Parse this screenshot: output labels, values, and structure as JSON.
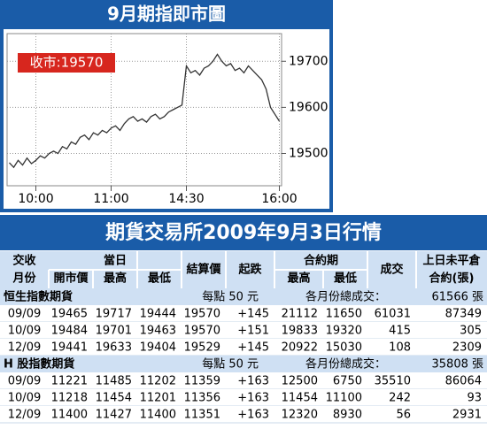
{
  "chart_data": {
    "type": "line",
    "title": "9月期指即市圖",
    "annotation": "收市:19570",
    "categories": [
      null,
      null,
      null,
      null,
      null,
      null,
      "10:00",
      null,
      null,
      null,
      null,
      null,
      null,
      null,
      null,
      null,
      null,
      null,
      null,
      null,
      null,
      null,
      null,
      "11:00",
      null,
      null,
      null,
      null,
      null,
      null,
      null,
      null,
      null,
      null,
      null,
      null,
      null,
      null,
      null,
      null,
      "14:30",
      null,
      null,
      null,
      null,
      null,
      null,
      null,
      null,
      null,
      null,
      null,
      null,
      null,
      null,
      null,
      null,
      null,
      null,
      null,
      null,
      "16:00"
    ],
    "values": [
      19480,
      19470,
      19485,
      19475,
      19490,
      19478,
      19485,
      19495,
      19490,
      19500,
      19505,
      19500,
      19515,
      19510,
      19525,
      19520,
      19535,
      19540,
      19530,
      19545,
      19540,
      19550,
      19545,
      19555,
      19560,
      19550,
      19565,
      19575,
      19580,
      19570,
      19575,
      19568,
      19580,
      19585,
      19575,
      19580,
      19590,
      19595,
      19600,
      19605,
      19690,
      19675,
      19680,
      19670,
      19685,
      19690,
      19700,
      19715,
      19700,
      19690,
      19695,
      19680,
      19685,
      19675,
      19690,
      19680,
      19670,
      19660,
      19640,
      19600,
      19585,
      19570
    ],
    "color": "#333333",
    "ylim": [
      19430,
      19760
    ],
    "yticks": [
      19500,
      19600,
      19700
    ],
    "grid": true
  },
  "table": {
    "title": "期貨交易所2009年9月3日行情",
    "header": {
      "month": [
        "交收",
        "月份"
      ],
      "day": "當日",
      "open": "開市價",
      "high": "最高",
      "low": "最低",
      "settle": "結算價",
      "change": "起跌",
      "contract": "合約期",
      "c_high": "最高",
      "c_low": "最低",
      "volume": "成交",
      "oi": [
        "上日未平倉",
        "合約(張)"
      ]
    },
    "sections": [
      {
        "name": "恒生指數期貨",
        "unit": "每點 50 元",
        "total_label": "各月份總成交：",
        "total": "61566 張",
        "rows": [
          [
            "09/09",
            "19465",
            "19717",
            "19444",
            "19570",
            "+145",
            "21112",
            "11650",
            "61031",
            "87349"
          ],
          [
            "10/09",
            "19484",
            "19701",
            "19463",
            "19570",
            "+151",
            "19833",
            "19320",
            "415",
            "305"
          ],
          [
            "12/09",
            "19441",
            "19633",
            "19404",
            "19529",
            "+145",
            "20922",
            "15030",
            "108",
            "2309"
          ]
        ]
      },
      {
        "name": "H 股指數期貨",
        "unit": "每點 50 元",
        "total_label": "各月份總成交：",
        "total": "35808 張",
        "rows": [
          [
            "09/09",
            "11221",
            "11485",
            "11202",
            "11359",
            "+163",
            "12500",
            "6750",
            "35510",
            "86064"
          ],
          [
            "10/09",
            "11218",
            "11454",
            "11201",
            "11356",
            "+163",
            "11454",
            "11100",
            "242",
            "93"
          ],
          [
            "12/09",
            "11400",
            "11427",
            "11400",
            "11351",
            "+163",
            "12320",
            "8930",
            "56",
            "2931"
          ]
        ]
      }
    ]
  }
}
